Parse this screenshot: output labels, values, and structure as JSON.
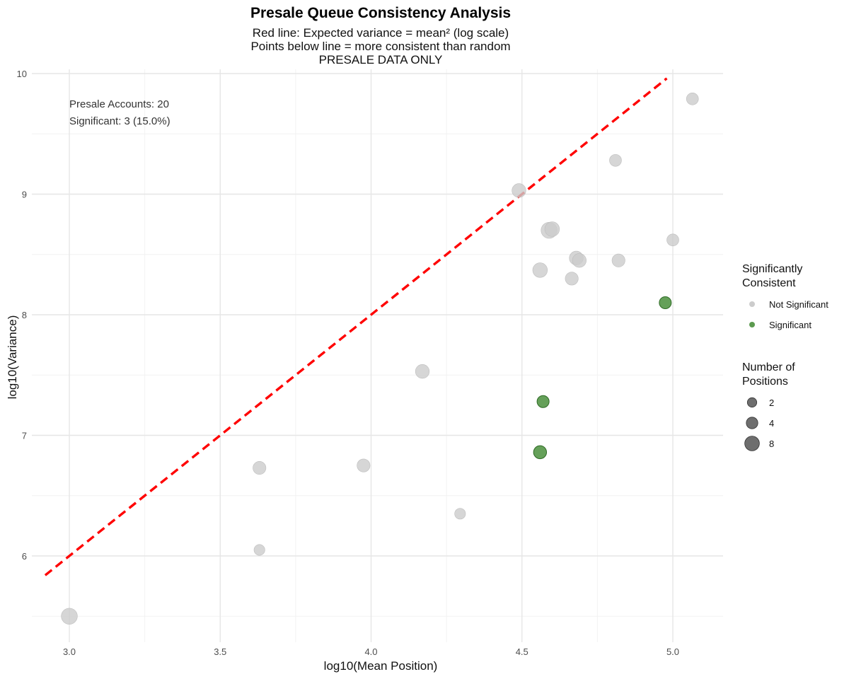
{
  "chart_data": {
    "type": "scatter",
    "title": "Presale Queue Consistency Analysis",
    "subtitle_lines": [
      "Red line: Expected variance = mean² (log scale)",
      "Points below line = more consistent than random",
      "PRESALE DATA ONLY"
    ],
    "xlabel": "log10(Mean Position)",
    "ylabel": "log10(Variance)",
    "xlim": [
      2.92,
      5.165
    ],
    "ylim": [
      5.3,
      10.0
    ],
    "x_ticks": [
      3.0,
      3.5,
      4.0,
      4.5,
      5.0
    ],
    "x_tick_labels": [
      "3.0",
      "3.5",
      "4.0",
      "4.5",
      "5.0"
    ],
    "y_ticks": [
      6,
      7,
      8,
      9,
      10
    ],
    "y_tick_labels": [
      "6",
      "7",
      "8",
      "9",
      "10"
    ],
    "grid": true,
    "reference_line": {
      "label": "Expected variance = mean²",
      "slope": 2,
      "intercept": 0,
      "x_range": [
        2.92,
        4.98
      ],
      "color": "#ff0000",
      "style": "dashed"
    },
    "annotations": [
      "Presale Accounts: 20",
      "Significant: 3 (15.0%)"
    ],
    "colors": {
      "not_significant": "#cccccc",
      "significant": "#4a8f3c",
      "significant_stroke": "#2f6b26",
      "size_key": "#555555"
    },
    "points": [
      {
        "x": 3.0,
        "y": 5.5,
        "positions": 8,
        "significant": false
      },
      {
        "x": 3.63,
        "y": 6.05,
        "positions": 2,
        "significant": false
      },
      {
        "x": 3.63,
        "y": 6.73,
        "positions": 4,
        "significant": false
      },
      {
        "x": 3.975,
        "y": 6.75,
        "positions": 4,
        "significant": false
      },
      {
        "x": 4.17,
        "y": 7.53,
        "positions": 5,
        "significant": false
      },
      {
        "x": 4.295,
        "y": 6.35,
        "positions": 2,
        "significant": false
      },
      {
        "x": 4.49,
        "y": 9.03,
        "positions": 5,
        "significant": false
      },
      {
        "x": 4.56,
        "y": 8.37,
        "positions": 6,
        "significant": false
      },
      {
        "x": 4.59,
        "y": 8.7,
        "positions": 8,
        "significant": false
      },
      {
        "x": 4.6,
        "y": 8.71,
        "positions": 6,
        "significant": false
      },
      {
        "x": 4.665,
        "y": 8.3,
        "positions": 4,
        "significant": false
      },
      {
        "x": 4.68,
        "y": 8.47,
        "positions": 5,
        "significant": false
      },
      {
        "x": 4.69,
        "y": 8.45,
        "positions": 5,
        "significant": false
      },
      {
        "x": 4.81,
        "y": 9.28,
        "positions": 3,
        "significant": false
      },
      {
        "x": 4.82,
        "y": 8.45,
        "positions": 4,
        "significant": false
      },
      {
        "x": 5.0,
        "y": 8.62,
        "positions": 3,
        "significant": false
      },
      {
        "x": 5.065,
        "y": 9.79,
        "positions": 3,
        "significant": false
      },
      {
        "x": 4.56,
        "y": 6.86,
        "positions": 4,
        "significant": true
      },
      {
        "x": 4.57,
        "y": 7.28,
        "positions": 3,
        "significant": true
      },
      {
        "x": 4.975,
        "y": 8.1,
        "positions": 3,
        "significant": true
      }
    ],
    "legend_color": {
      "title_lines": [
        "Significantly",
        "Consistent"
      ],
      "items": [
        {
          "label": "Not Significant",
          "key": "not_significant"
        },
        {
          "label": "Significant",
          "key": "significant"
        }
      ]
    },
    "legend_size": {
      "title_lines": [
        "Number of",
        "Positions"
      ],
      "items": [
        {
          "label": "2",
          "value": 2
        },
        {
          "label": "4",
          "value": 4
        },
        {
          "label": "8",
          "value": 8
        }
      ]
    }
  }
}
